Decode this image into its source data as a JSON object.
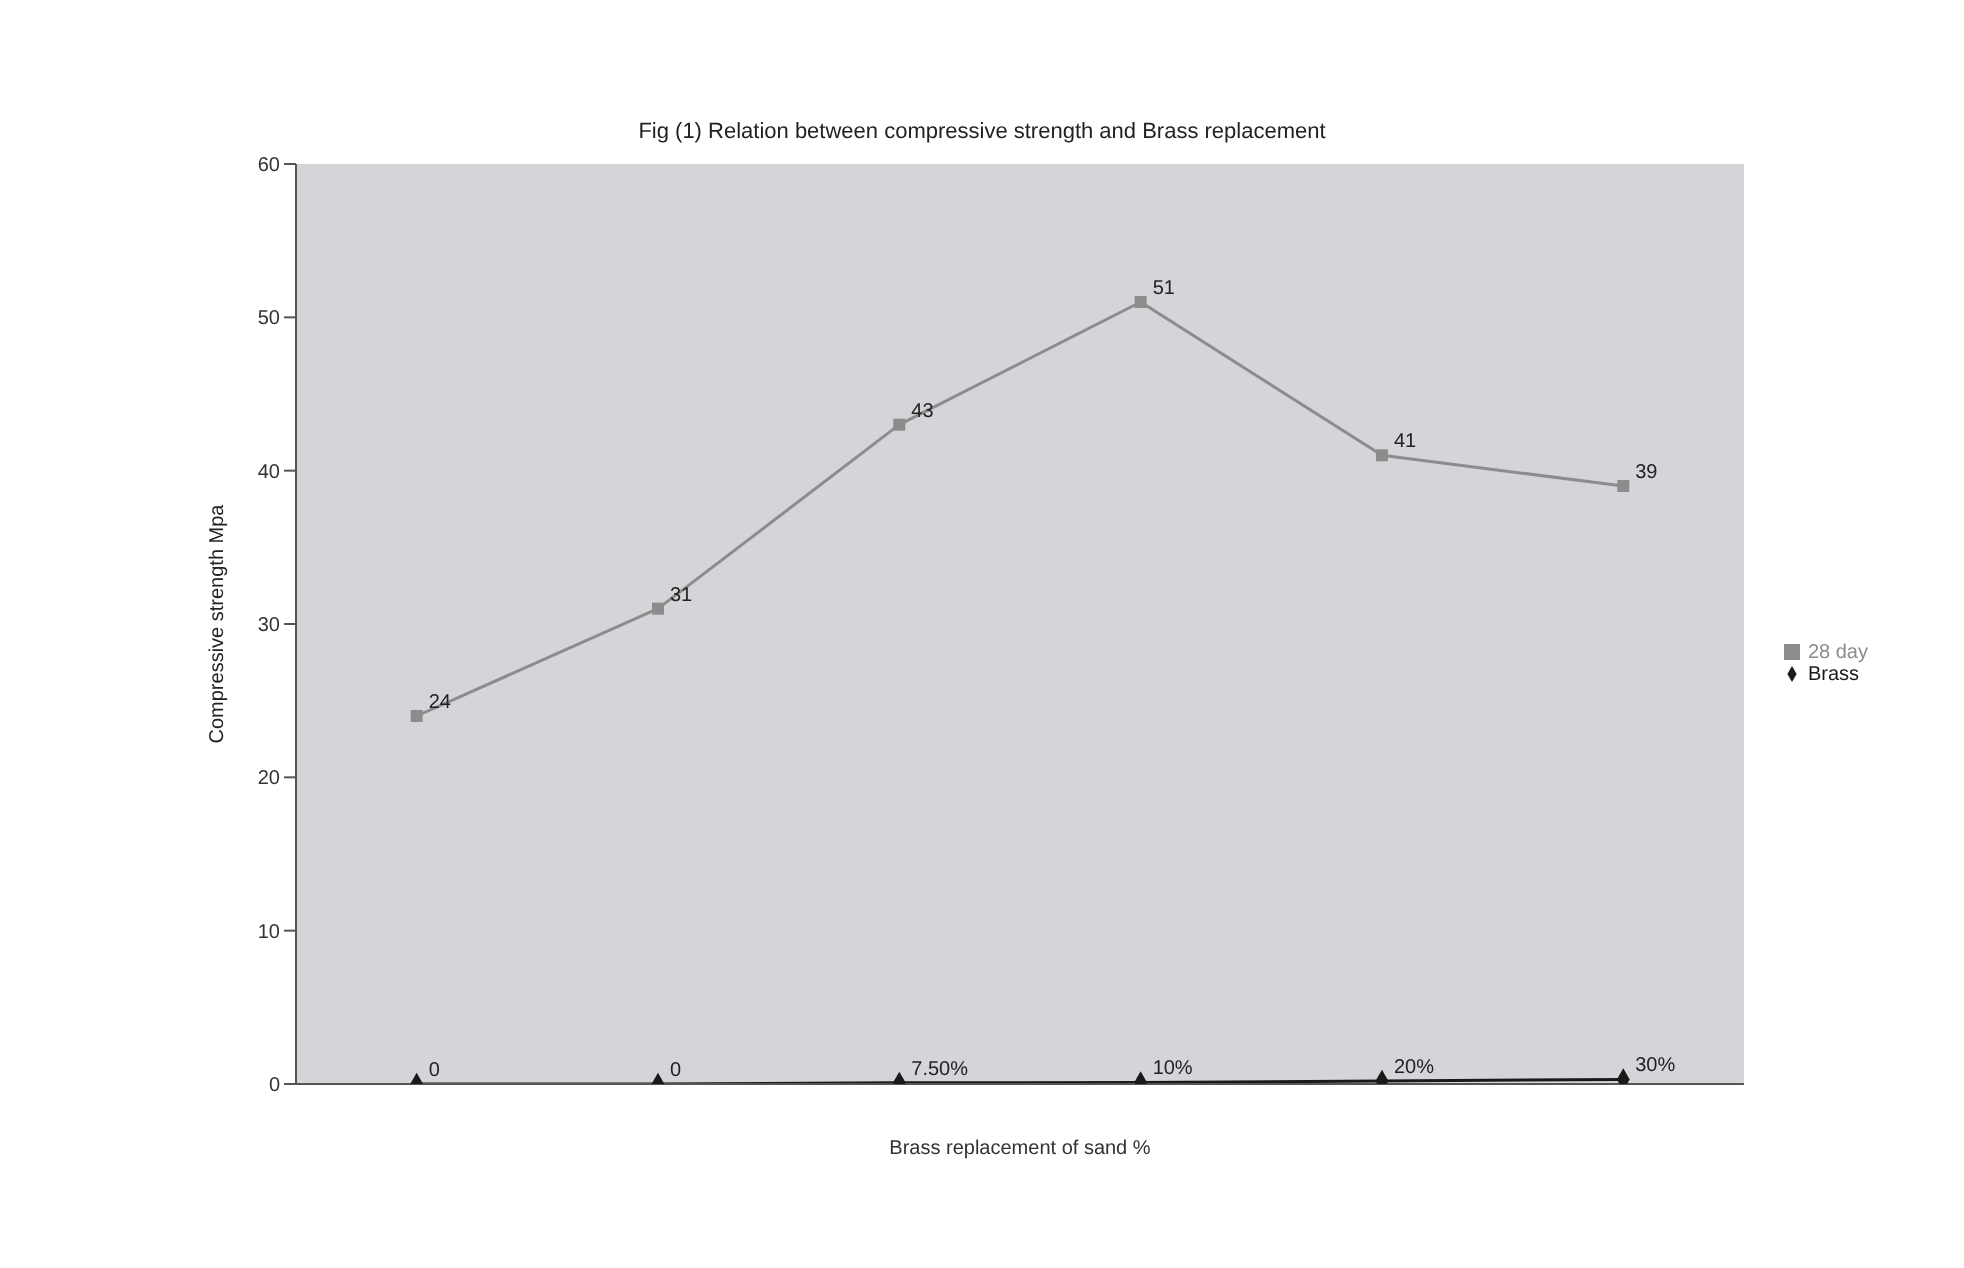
{
  "chart_data": {
    "type": "line",
    "title": "Fig (1) Relation between compressive strength and Brass replacement",
    "xlabel": "Brass replacement of sand %",
    "ylabel": "Compressive strength Mpa",
    "categories": [
      null,
      null,
      null,
      null,
      null,
      null
    ],
    "series": [
      {
        "name": "28 day",
        "color": "#8c8c8c",
        "marker": "square",
        "values": [
          24,
          31,
          43,
          51,
          41,
          39
        ],
        "value_labels": [
          "24",
          "31",
          "43",
          "51",
          "41",
          "39"
        ]
      },
      {
        "name": "Brass",
        "color": "#1a1a1a",
        "marker": "diamond",
        "values": [
          0,
          0,
          0.075,
          0.1,
          0.2,
          0.3
        ],
        "value_labels": [
          "0",
          "0",
          "7.50%",
          "10%",
          "20%",
          "30%"
        ]
      }
    ],
    "ylim": [
      0,
      60
    ],
    "yticks": [
      0,
      10,
      20,
      30,
      40,
      50,
      60
    ],
    "grid": false,
    "legend": "right"
  }
}
